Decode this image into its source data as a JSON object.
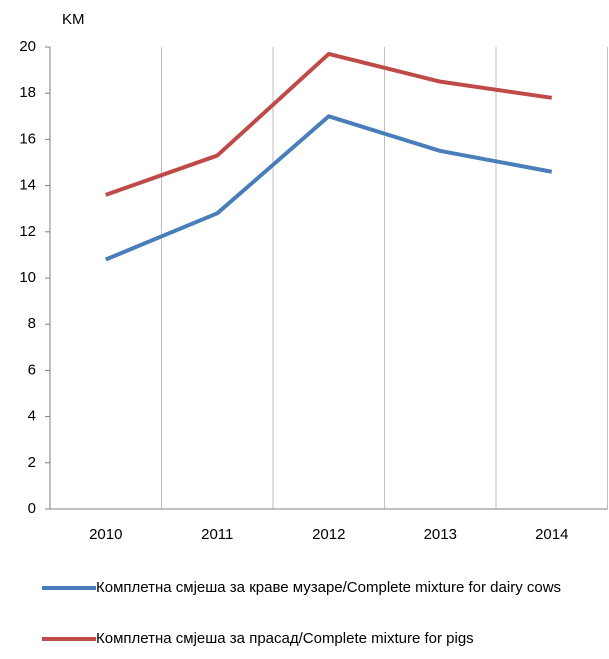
{
  "chart_data": {
    "type": "line",
    "y_label": "KM",
    "categories": [
      "2010",
      "2011",
      "2012",
      "2013",
      "2014"
    ],
    "series": [
      {
        "name": "Комплетна смјеша за краве музаре/Complete mixture for dairy cows",
        "color": "#4a7ebb",
        "values": [
          10.8,
          12.8,
          17.0,
          15.5,
          14.6
        ]
      },
      {
        "name": "Комплетна смјеша за прасад/Complete mixture for pigs",
        "color": "#be4b48",
        "values": [
          13.6,
          15.3,
          19.7,
          18.5,
          17.8
        ]
      }
    ],
    "ylim": [
      0,
      20
    ],
    "yticks": [
      0,
      2,
      4,
      6,
      8,
      10,
      12,
      14,
      16,
      18,
      20
    ],
    "legend": "bottom"
  }
}
